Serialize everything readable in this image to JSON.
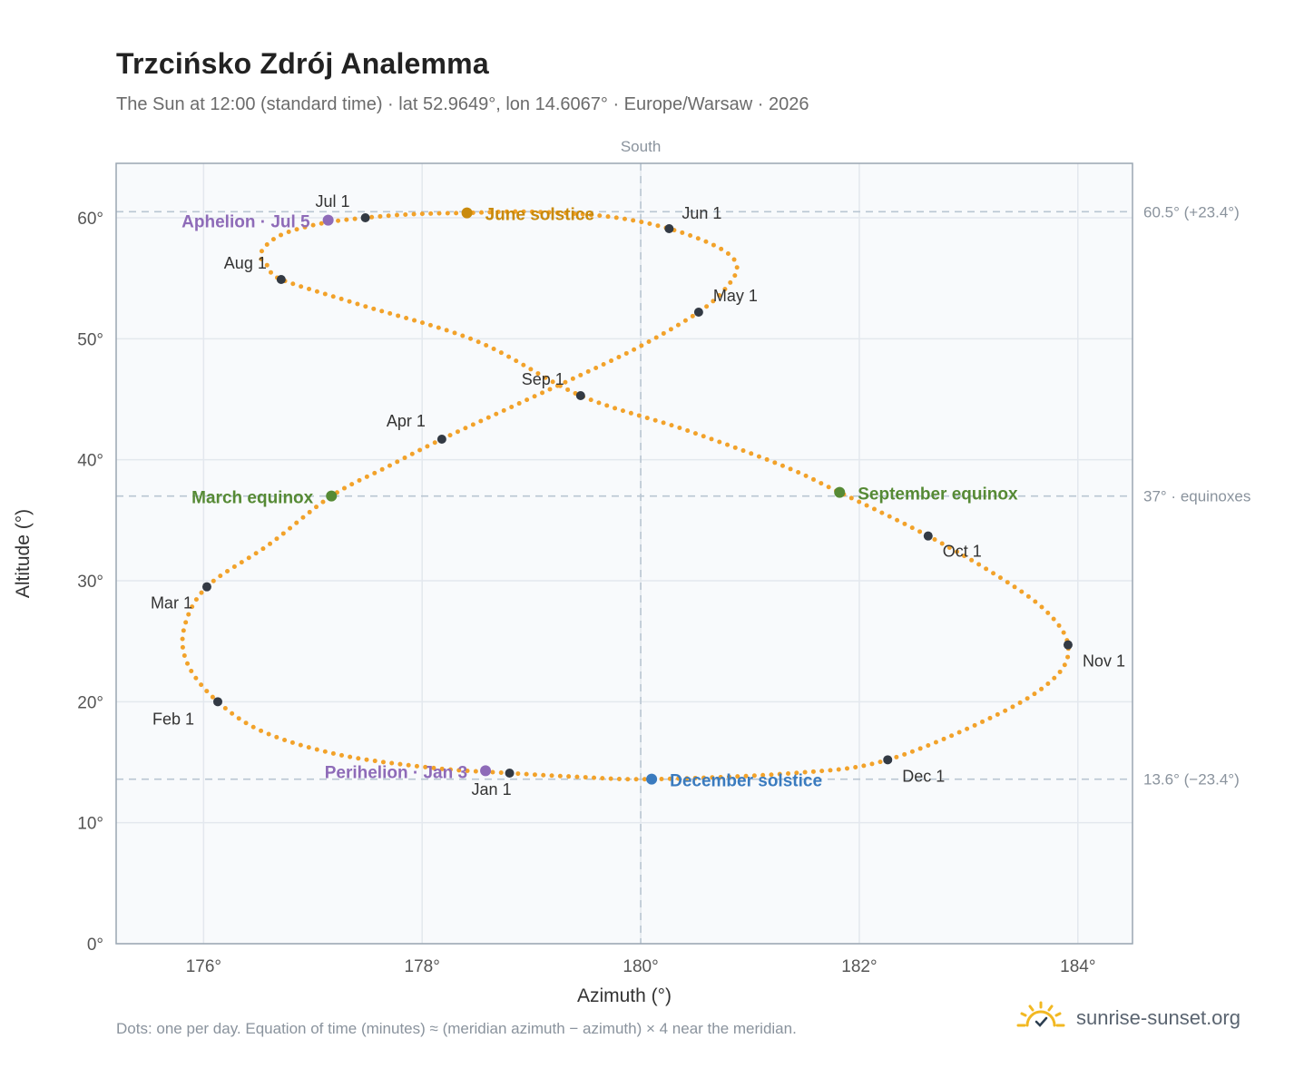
{
  "title": "Trzcińsko Zdrój Analemma",
  "subtitle": "The Sun at 12:00 (standard time) · lat 52.9649°, lon 14.6067° · Europe/Warsaw · 2026",
  "footnote": "Dots: one per day. Equation of time (minutes) ≈ (meridian azimuth − azimuth) × 4 near the meridian.",
  "brand": "sunrise-sunset.org",
  "colors": {
    "curve": "#f2a22a",
    "month_marker": "#333a44",
    "solstice_june": "#c98a0c",
    "solstice_december": "#3a7bbf",
    "equinox": "#568a35",
    "apsis": "#8e6bb8",
    "guide": "#b9c6d2",
    "grid": "#e3e8ee",
    "plot_bg": "#f8fafc",
    "frame": "#9aa6b2"
  },
  "chart_data": {
    "type": "scatter",
    "xlabel": "Azimuth (°)",
    "ylabel": "Altitude (°)",
    "xlim": [
      175.2,
      184.5
    ],
    "ylim": [
      0,
      64.5
    ],
    "x_ticks": [
      176,
      178,
      180,
      182,
      184
    ],
    "y_ticks": [
      0,
      10,
      20,
      30,
      40,
      50,
      60
    ],
    "x_tick_labels": [
      "176°",
      "178°",
      "180°",
      "182°",
      "184°"
    ],
    "y_tick_labels": [
      "0°",
      "10°",
      "20°",
      "30°",
      "40°",
      "50°",
      "60°"
    ],
    "grid": true,
    "south_line": {
      "x": 180,
      "label": "South"
    },
    "reference_lines": [
      {
        "y": 60.5,
        "label": "60.5° (+23.4°)"
      },
      {
        "y": 37,
        "label": "37° · equinoxes"
      },
      {
        "y": 13.6,
        "label": "13.6° (−23.4°)"
      }
    ],
    "series": [
      {
        "points": [
          [
            178.8,
            14.1
          ],
          [
            178.13,
            14.5
          ],
          [
            177.25,
            15.6
          ],
          [
            176.55,
            17.5
          ],
          [
            176.13,
            20.0
          ],
          [
            175.86,
            23.0
          ],
          [
            175.82,
            26.0
          ],
          [
            176.03,
            29.5
          ],
          [
            176.6,
            33.0
          ],
          [
            177.17,
            37.0
          ],
          [
            177.7,
            39.5
          ],
          [
            178.18,
            41.7
          ],
          [
            178.85,
            44.5
          ],
          [
            179.45,
            47.0
          ],
          [
            180.0,
            49.4
          ],
          [
            180.53,
            52.2
          ],
          [
            180.78,
            54.2
          ],
          [
            180.88,
            56.0
          ],
          [
            180.72,
            57.5
          ],
          [
            180.26,
            59.1
          ],
          [
            179.7,
            60.1
          ],
          [
            178.98,
            60.5
          ],
          [
            178.41,
            60.4
          ],
          [
            177.92,
            60.3
          ],
          [
            177.48,
            60.0
          ],
          [
            177.06,
            59.5
          ],
          [
            176.69,
            58.5
          ],
          [
            176.52,
            57.0
          ],
          [
            176.6,
            55.9
          ],
          [
            176.71,
            54.9
          ],
          [
            177.4,
            52.9
          ],
          [
            178.5,
            49.8
          ],
          [
            179.45,
            45.3
          ],
          [
            180.4,
            42.5
          ],
          [
            181.3,
            39.5
          ],
          [
            181.82,
            37.3
          ],
          [
            182.63,
            33.7
          ],
          [
            183.3,
            30.2
          ],
          [
            183.72,
            27.4
          ],
          [
            183.91,
            24.7
          ],
          [
            183.8,
            22.1
          ],
          [
            183.3,
            19.1
          ],
          [
            182.26,
            15.2
          ],
          [
            181.4,
            14.1
          ],
          [
            180.1,
            13.6
          ],
          [
            179.4,
            13.8
          ],
          [
            178.8,
            14.1
          ]
        ]
      }
    ],
    "month_markers": [
      {
        "label": "Jan 1",
        "x": 178.8,
        "y": 14.1
      },
      {
        "label": "Feb 1",
        "x": 176.13,
        "y": 20.0
      },
      {
        "label": "Mar 1",
        "x": 176.03,
        "y": 29.5
      },
      {
        "label": "Apr 1",
        "x": 178.18,
        "y": 41.7
      },
      {
        "label": "May 1",
        "x": 180.53,
        "y": 52.2
      },
      {
        "label": "Jun 1",
        "x": 180.26,
        "y": 59.1
      },
      {
        "label": "Jul 1",
        "x": 177.48,
        "y": 60.0
      },
      {
        "label": "Aug 1",
        "x": 176.71,
        "y": 54.9
      },
      {
        "label": "Sep 1",
        "x": 179.45,
        "y": 45.3
      },
      {
        "label": "Oct 1",
        "x": 182.63,
        "y": 33.7
      },
      {
        "label": "Nov 1",
        "x": 183.91,
        "y": 24.7
      },
      {
        "label": "Dec 1",
        "x": 182.26,
        "y": 15.2
      }
    ],
    "events": [
      {
        "label": "June solstice",
        "x": 178.41,
        "y": 60.4,
        "kind": "solstice_june"
      },
      {
        "label": "December solstice",
        "x": 180.1,
        "y": 13.6,
        "kind": "solstice_december"
      },
      {
        "label": "March equinox",
        "x": 177.17,
        "y": 37.0,
        "kind": "equinox"
      },
      {
        "label": "September equinox",
        "x": 181.82,
        "y": 37.3,
        "kind": "equinox"
      },
      {
        "label": "Aphelion · Jul 5",
        "x": 177.14,
        "y": 59.8,
        "kind": "apsis"
      },
      {
        "label": "Perihelion · Jan 3",
        "x": 178.58,
        "y": 14.3,
        "kind": "apsis"
      }
    ]
  }
}
